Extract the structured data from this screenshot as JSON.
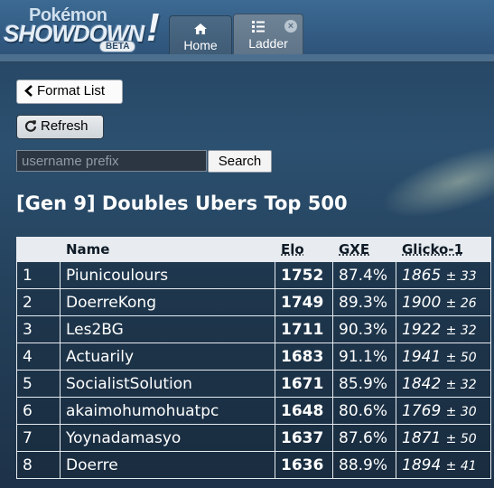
{
  "header": {
    "logo": {
      "line1": "Pokémon",
      "line2": "SHOWDOWN",
      "badge": "BETA",
      "bang": "!"
    },
    "tabs": [
      {
        "label": "Home",
        "icon": "home-icon",
        "active": true
      },
      {
        "label": "Ladder",
        "icon": "list-icon",
        "closable": true,
        "close_label": "×"
      }
    ]
  },
  "controls": {
    "format_list_label": "Format List",
    "refresh_label": "Refresh",
    "search_placeholder": "username prefix",
    "search_value": "",
    "search_button_label": "Search"
  },
  "ladder": {
    "title": "[Gen 9] Doubles Ubers Top 500",
    "columns": [
      "",
      "Name",
      "Elo",
      "GXE",
      "Glicko-1"
    ],
    "rows": [
      {
        "rank": "1",
        "name": "Piunicoulours",
        "elo": "1752",
        "gxe": "87.4%",
        "glicko": "1865",
        "dev": "± 33"
      },
      {
        "rank": "2",
        "name": "DoerreKong",
        "elo": "1749",
        "gxe": "89.3%",
        "glicko": "1900",
        "dev": "± 26"
      },
      {
        "rank": "3",
        "name": "Les2BG",
        "elo": "1711",
        "gxe": "90.3%",
        "glicko": "1922",
        "dev": "± 32"
      },
      {
        "rank": "4",
        "name": "Actuarily",
        "elo": "1683",
        "gxe": "91.1%",
        "glicko": "1941",
        "dev": "± 50"
      },
      {
        "rank": "5",
        "name": "SocialistSolution",
        "elo": "1671",
        "gxe": "85.9%",
        "glicko": "1842",
        "dev": "± 32"
      },
      {
        "rank": "6",
        "name": "akaimohumohuatpc",
        "elo": "1648",
        "gxe": "80.6%",
        "glicko": "1769",
        "dev": "± 30"
      },
      {
        "rank": "7",
        "name": "Yoynadamasyo",
        "elo": "1637",
        "gxe": "87.6%",
        "glicko": "1871",
        "dev": "± 50"
      },
      {
        "rank": "8",
        "name": "Doerre",
        "elo": "1636",
        "gxe": "88.9%",
        "glicko": "1894",
        "dev": "± 41"
      }
    ]
  },
  "colors": {
    "header_blue": "#2d5278",
    "background": "#24435f",
    "table_header": "#e8ecf0"
  }
}
